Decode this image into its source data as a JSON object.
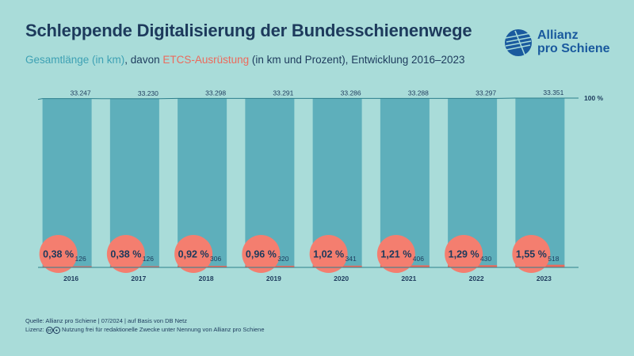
{
  "title": "Schleppende Digitalisierung der Bundesschienenwege",
  "subtitle": {
    "part1": "Gesamtlänge (in km)",
    "part2": ", davon ",
    "part3": "ETCS-Ausrüstung",
    "part4": " (in km und Prozent), Entwicklung 2016–2023"
  },
  "logo": {
    "line1": "Allianz",
    "line2": "pro Schiene"
  },
  "colors": {
    "bar": "#5eafbb",
    "bar_line": "#2d7f8c",
    "circle": "#f47e6f",
    "etcs": "#ec6a5c",
    "text": "#1d3a5c",
    "bg": "#a9dcd9"
  },
  "chart_data": {
    "type": "bar",
    "title": "Schleppende Digitalisierung der Bundesschienenwege",
    "categories": [
      "2016",
      "2017",
      "2018",
      "2019",
      "2020",
      "2021",
      "2022",
      "2023"
    ],
    "series": [
      {
        "name": "Gesamtlänge (in km)",
        "values": [
          33247,
          33230,
          33298,
          33291,
          33286,
          33288,
          33297,
          33351
        ],
        "labels": [
          "33.247",
          "33.230",
          "33.298",
          "33.291",
          "33.286",
          "33.288",
          "33.297",
          "33.351"
        ]
      },
      {
        "name": "ETCS-Ausrüstung (in km)",
        "values": [
          126,
          126,
          306,
          320,
          341,
          406,
          430,
          518
        ],
        "labels": [
          "126",
          "126",
          "306",
          "320",
          "341",
          "406",
          "430",
          "518"
        ]
      }
    ],
    "percent_labels": [
      "0,38 %",
      "0,38 %",
      "0,92 %",
      "0,96 %",
      "1,02 %",
      "1,21 %",
      "1,29 %",
      "1,55 %"
    ],
    "percent_values": [
      0.38,
      0.38,
      0.92,
      0.96,
      1.02,
      1.21,
      1.29,
      1.55
    ],
    "reference_label": "100 %",
    "ylim": [
      0,
      33351
    ]
  },
  "footer": {
    "source": "Quelle: Allianz pro Schiene | 07/2024 | auf Basis von DB Netz",
    "license_label": "Lizenz:",
    "license_text": "Nutzung frei für redaktionelle Zwecke unter Nennung von Allianz pro Schiene"
  }
}
